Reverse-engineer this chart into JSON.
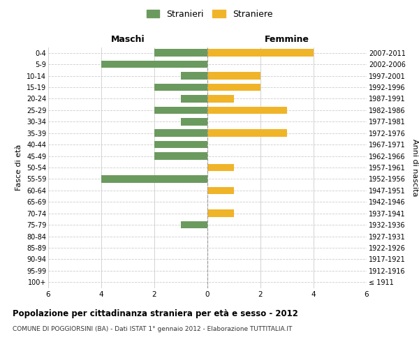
{
  "age_groups": [
    "100+",
    "95-99",
    "90-94",
    "85-89",
    "80-84",
    "75-79",
    "70-74",
    "65-69",
    "60-64",
    "55-59",
    "50-54",
    "45-49",
    "40-44",
    "35-39",
    "30-34",
    "25-29",
    "20-24",
    "15-19",
    "10-14",
    "5-9",
    "0-4"
  ],
  "birth_years": [
    "≤ 1911",
    "1912-1916",
    "1917-1921",
    "1922-1926",
    "1927-1931",
    "1932-1936",
    "1937-1941",
    "1942-1946",
    "1947-1951",
    "1952-1956",
    "1957-1961",
    "1962-1966",
    "1967-1971",
    "1972-1976",
    "1977-1981",
    "1982-1986",
    "1987-1991",
    "1992-1996",
    "1997-2001",
    "2002-2006",
    "2007-2011"
  ],
  "males": [
    0,
    0,
    0,
    0,
    0,
    1,
    0,
    0,
    0,
    4,
    0,
    2,
    2,
    2,
    1,
    2,
    1,
    2,
    1,
    4,
    2
  ],
  "females": [
    0,
    0,
    0,
    0,
    0,
    0,
    1,
    0,
    1,
    0,
    1,
    0,
    0,
    3,
    0,
    3,
    1,
    2,
    2,
    0,
    4
  ],
  "male_color": "#6b9a5e",
  "female_color": "#f0b429",
  "title": "Popolazione per cittadinanza straniera per età e sesso - 2012",
  "subtitle": "COMUNE DI POGGIORSINI (BA) - Dati ISTAT 1° gennaio 2012 - Elaborazione TUTTITALIA.IT",
  "xlabel_left": "Maschi",
  "xlabel_right": "Femmine",
  "ylabel_left": "Fasce di età",
  "ylabel_right": "Anni di nascita",
  "legend_male": "Stranieri",
  "legend_female": "Straniere",
  "xlim": 6,
  "background_color": "#ffffff",
  "grid_color": "#cccccc"
}
